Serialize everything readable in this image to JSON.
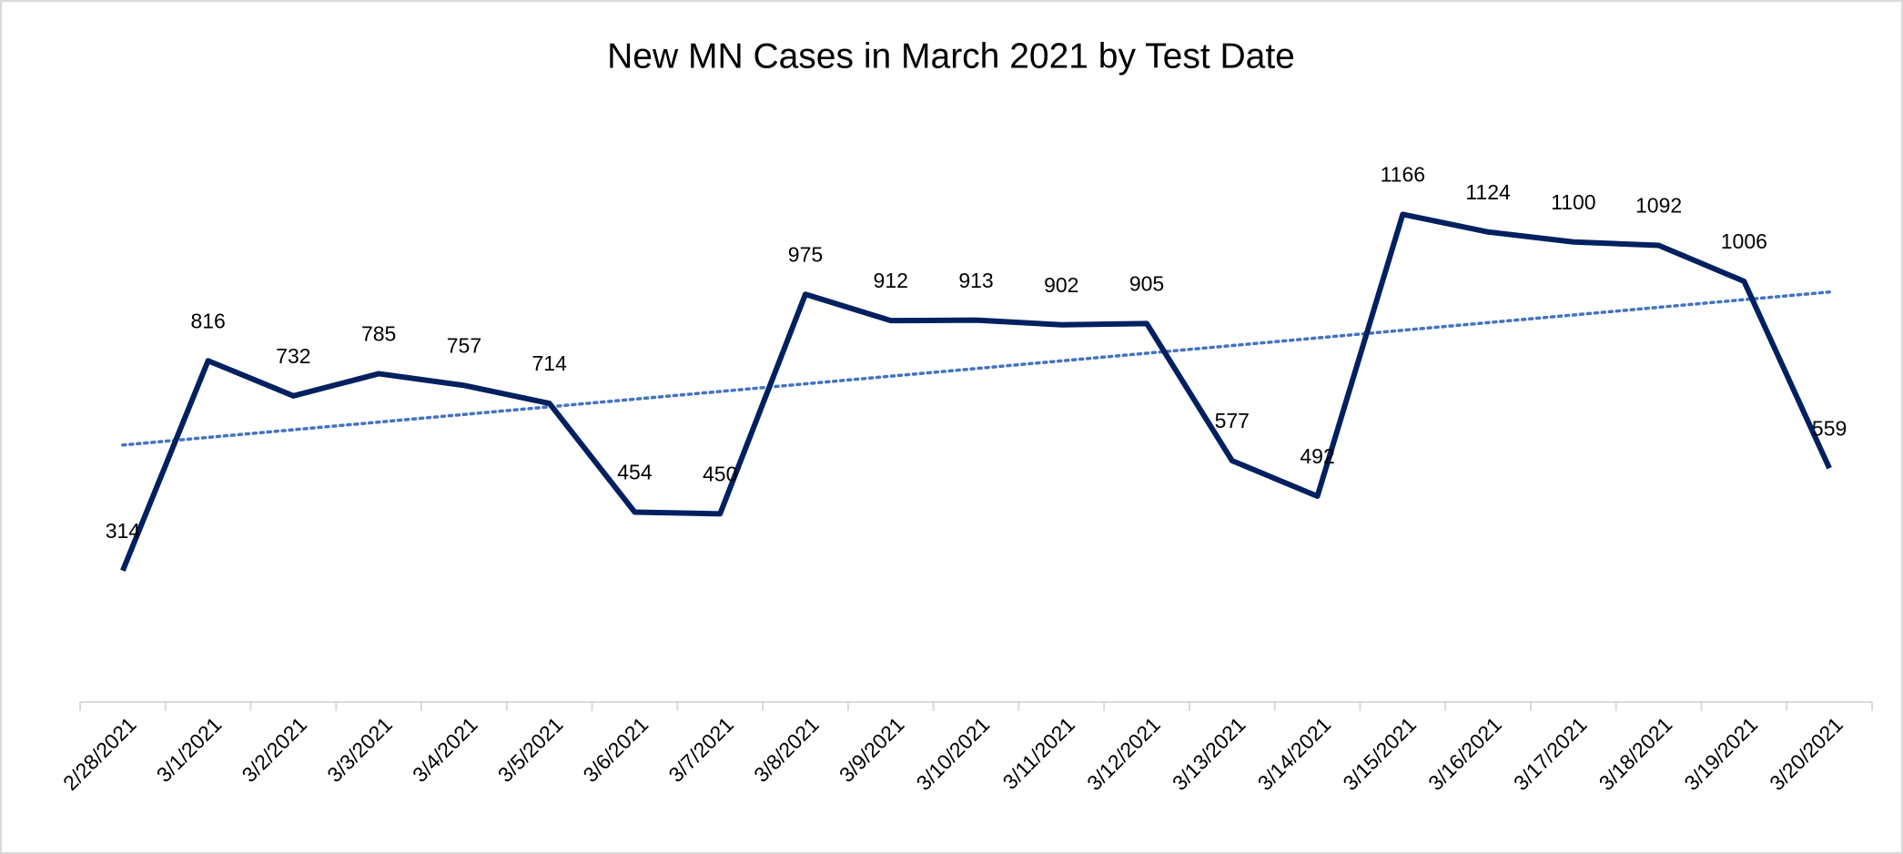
{
  "chart_data": {
    "type": "line",
    "title": "New MN Cases in March 2021 by Test Date",
    "categories": [
      "2/28/2021",
      "3/1/2021",
      "3/2/2021",
      "3/3/2021",
      "3/4/2021",
      "3/5/2021",
      "3/6/2021",
      "3/7/2021",
      "3/8/2021",
      "3/9/2021",
      "3/10/2021",
      "3/11/2021",
      "3/12/2021",
      "3/13/2021",
      "3/14/2021",
      "3/15/2021",
      "3/16/2021",
      "3/17/2021",
      "3/18/2021",
      "3/19/2021",
      "3/20/2021"
    ],
    "values": [
      314,
      816,
      732,
      785,
      757,
      714,
      454,
      450,
      975,
      912,
      913,
      902,
      905,
      577,
      492,
      1166,
      1124,
      1100,
      1092,
      1006,
      559
    ],
    "color": "#002060",
    "trendline": true,
    "trendline_color": "#4472c4",
    "ylim": [
      0,
      1400
    ]
  }
}
